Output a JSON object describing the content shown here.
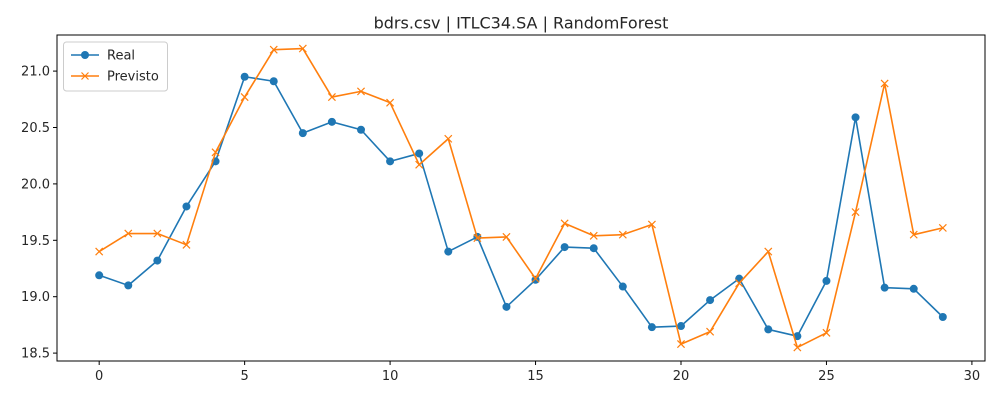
{
  "chart_data": {
    "type": "line",
    "title": "bdrs.csv | ITLC34.SA | RandomForest",
    "xlabel": "",
    "ylabel": "",
    "xlim": [
      -1.45,
      30.45
    ],
    "ylim": [
      18.43,
      21.32
    ],
    "xticks": [
      0,
      5,
      10,
      15,
      20,
      25,
      30
    ],
    "yticks": [
      18.5,
      19.0,
      19.5,
      20.0,
      20.5,
      21.0
    ],
    "xtick_labels": [
      "0",
      "5",
      "10",
      "15",
      "20",
      "25",
      "30"
    ],
    "ytick_labels": [
      "18.5",
      "19.0",
      "19.5",
      "20.0",
      "20.5",
      "21.0"
    ],
    "grid": false,
    "legend_position": "upper-left",
    "x": [
      0,
      1,
      2,
      3,
      4,
      5,
      6,
      7,
      8,
      9,
      10,
      11,
      12,
      13,
      14,
      15,
      16,
      17,
      18,
      19,
      20,
      21,
      22,
      23,
      24,
      25,
      26,
      27,
      28,
      29
    ],
    "series": [
      {
        "name": "Real",
        "color": "#1f77b4",
        "marker": "circle",
        "values": [
          19.19,
          19.1,
          19.32,
          19.8,
          20.2,
          20.95,
          20.91,
          20.45,
          20.55,
          20.48,
          20.2,
          20.27,
          19.4,
          19.53,
          18.91,
          19.15,
          19.44,
          19.43,
          19.09,
          18.73,
          18.74,
          18.97,
          19.16,
          18.71,
          18.65,
          19.14,
          20.59,
          19.08,
          19.07,
          18.82
        ]
      },
      {
        "name": "Previsto",
        "color": "#ff7f0e",
        "marker": "x",
        "values": [
          19.4,
          19.56,
          19.56,
          19.46,
          20.28,
          20.77,
          21.19,
          21.2,
          20.77,
          20.82,
          20.72,
          20.17,
          20.4,
          19.52,
          19.53,
          19.16,
          19.65,
          19.54,
          19.55,
          19.64,
          18.58,
          18.69,
          19.12,
          19.4,
          18.55,
          18.68,
          19.75,
          20.89,
          19.55,
          19.61
        ]
      }
    ]
  }
}
